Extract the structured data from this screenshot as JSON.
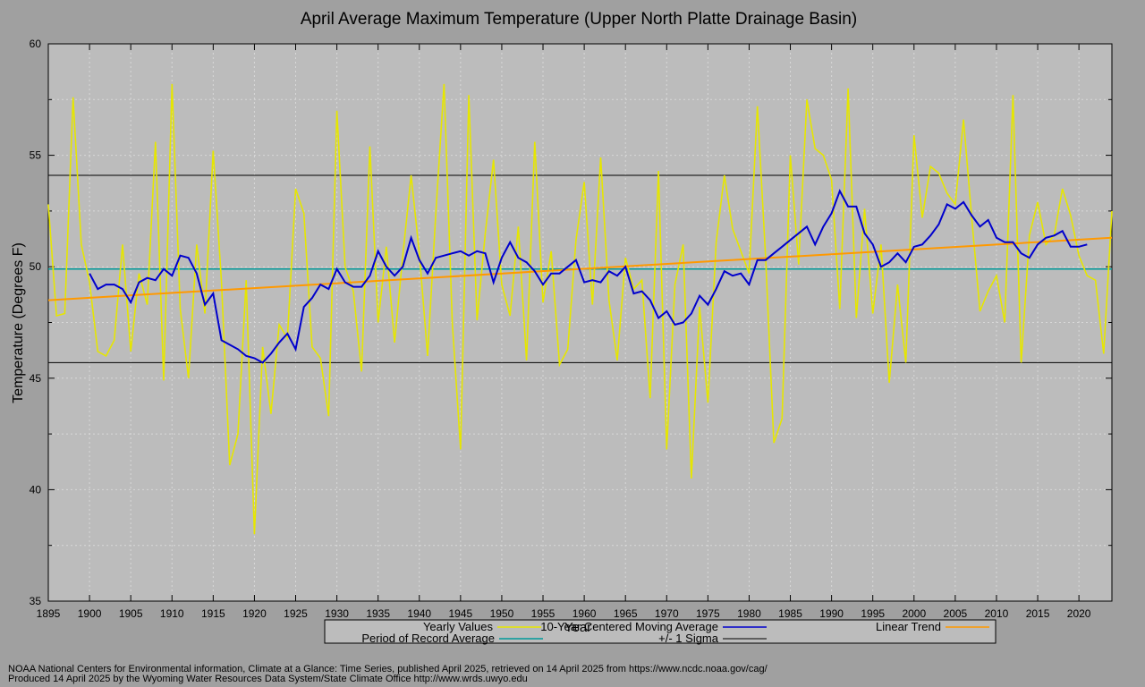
{
  "chart_data": {
    "type": "line",
    "title": "April Average Maximum Temperature (Upper North Platte Drainage Basin)",
    "xlabel": "Year",
    "ylabel": "Temperature (Degrees F)",
    "xlim": [
      1895,
      2024
    ],
    "ylim": [
      35,
      60
    ],
    "xticks": [
      1895,
      1900,
      1905,
      1910,
      1915,
      1920,
      1925,
      1930,
      1935,
      1940,
      1945,
      1950,
      1955,
      1960,
      1965,
      1970,
      1975,
      1980,
      1985,
      1990,
      1995,
      2000,
      2005,
      2010,
      2015,
      2020
    ],
    "yticks": [
      35,
      40,
      45,
      50,
      55,
      60
    ],
    "grid": true,
    "legend_placement": "bottom",
    "x_start": 1895,
    "series": [
      {
        "name": "Yearly Values",
        "color": "#e6e600",
        "values": [
          52.8,
          47.8,
          47.9,
          57.6,
          51.0,
          49.3,
          46.2,
          46.0,
          46.7,
          51.0,
          46.2,
          49.7,
          48.3,
          55.6,
          44.9,
          58.2,
          48.1,
          45.0,
          51.0,
          47.9,
          55.2,
          49.3,
          41.1,
          42.5,
          49.4,
          38.0,
          46.4,
          43.4,
          47.4,
          46.8,
          53.5,
          52.4,
          46.4,
          45.9,
          43.3,
          57.0,
          50.0,
          48.9,
          45.3,
          55.4,
          47.5,
          50.9,
          46.6,
          50.5,
          54.1,
          50.6,
          46.0,
          52.4,
          58.2,
          47.5,
          41.8,
          57.7,
          47.6,
          51.5,
          54.8,
          49.2,
          47.8,
          51.8,
          45.8,
          55.6,
          48.4,
          50.7,
          45.6,
          46.3,
          51.2,
          53.8,
          48.3,
          54.9,
          48.5,
          45.8,
          50.4,
          49.0,
          49.4,
          44.1,
          54.3,
          41.8,
          49.2,
          51.0,
          40.5,
          48.2,
          43.9,
          51.1,
          54.1,
          51.7,
          50.7,
          49.7,
          57.2,
          50.4,
          42.1,
          43.2,
          55.0,
          50.1,
          57.5,
          55.3,
          55.0,
          53.9,
          48.1,
          58.0,
          47.7,
          52.6,
          47.9,
          51.0,
          44.8,
          49.2,
          45.7,
          55.9,
          52.2,
          54.5,
          54.2,
          53.3,
          52.8,
          56.6,
          52.2,
          48.0,
          48.9,
          49.6,
          47.5,
          57.7,
          45.7,
          51.4,
          52.9,
          51.0,
          51.4,
          53.5,
          52.3,
          50.5,
          49.6,
          49.4,
          46.1,
          52.5
        ]
      },
      {
        "name": "10-Year Centered Moving Average",
        "color": "#0000cc",
        "x_start": 1900,
        "values": [
          49.7,
          49.0,
          49.2,
          49.2,
          49.0,
          48.4,
          49.3,
          49.5,
          49.4,
          49.9,
          49.6,
          50.5,
          50.4,
          49.7,
          48.3,
          48.8,
          46.7,
          46.5,
          46.3,
          46.0,
          45.9,
          45.7,
          46.1,
          46.6,
          47.0,
          46.3,
          48.2,
          48.6,
          49.2,
          49.0,
          49.9,
          49.3,
          49.1,
          49.1,
          49.6,
          50.7,
          50.0,
          49.6,
          50.0,
          51.3,
          50.3,
          49.7,
          50.4,
          50.5,
          50.6,
          50.7,
          50.5,
          50.7,
          50.6,
          49.3,
          50.4,
          51.1,
          50.4,
          50.2,
          49.8,
          49.2,
          49.7,
          49.7,
          50.0,
          50.3,
          49.3,
          49.4,
          49.3,
          49.8,
          49.6,
          50.0,
          48.8,
          48.9,
          48.5,
          47.7,
          48.0,
          47.4,
          47.5,
          47.9,
          48.7,
          48.3,
          49.0,
          49.8,
          49.6,
          49.7,
          49.2,
          50.3,
          50.3,
          50.6,
          50.9,
          51.2,
          51.5,
          51.8,
          51.0,
          51.8,
          52.4,
          53.4,
          52.7,
          52.7,
          51.5,
          51.0,
          50.0,
          50.2,
          50.6,
          50.2,
          50.9,
          51.0,
          51.4,
          51.9,
          52.8,
          52.6,
          52.9,
          52.3,
          51.8,
          52.1,
          51.3,
          51.1,
          51.1,
          50.6,
          50.4,
          51.0,
          51.3,
          51.4,
          51.6,
          50.9,
          50.9,
          51.0
        ]
      },
      {
        "name": "Linear Trend",
        "color": "#ff9900",
        "x": [
          1895,
          2024
        ],
        "values": [
          48.5,
          51.3
        ]
      },
      {
        "name": "Period of Record Average",
        "color": "#009999",
        "value": 49.9
      },
      {
        "name": "+/- 1 Sigma",
        "color": "#000000",
        "values": [
          45.7,
          54.1
        ]
      }
    ]
  },
  "legend": {
    "yearly": "Yearly Values",
    "moving": "10-Year Centered Moving Average",
    "trend": "Linear Trend",
    "por": "Period of Record Average",
    "sigma": "+/- 1 Sigma"
  },
  "footer": {
    "line1": "NOAA National Centers for Environmental information, Climate at a Glance: Time Series, published April 2025, retrieved on 14 April 2025 from https://www.ncdc.noaa.gov/cag/",
    "line2": "Produced 14 April 2025 by the Wyoming Water Resources Data System/State Climate Office http://www.wrds.uwyo.edu"
  }
}
